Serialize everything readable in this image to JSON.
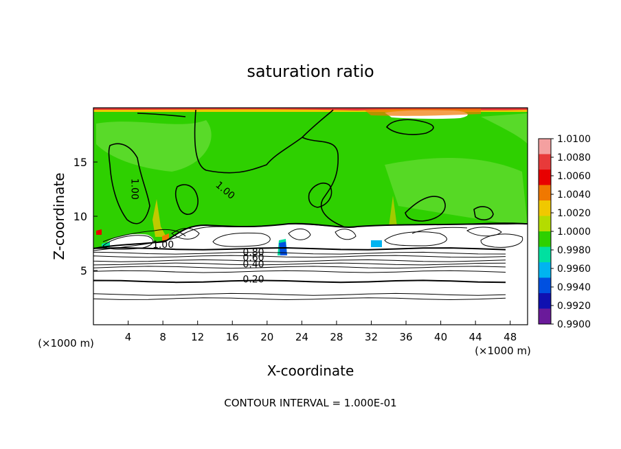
{
  "chart_data": {
    "type": "heatmap",
    "title": "saturation ratio",
    "xlabel": "X-coordinate",
    "ylabel": "Z-coordinate",
    "x_units_left": "(×1000 m)",
    "x_units_right": "(×1000 m)",
    "xlim": [
      0,
      50
    ],
    "ylim": [
      0,
      20
    ],
    "xticks": [
      4,
      8,
      12,
      16,
      20,
      24,
      28,
      32,
      36,
      40,
      44,
      48
    ],
    "yticks": [
      5,
      10,
      15
    ],
    "footer": "CONTOUR INTERVAL = 1.000E-01",
    "colorbar": {
      "ticks": [
        "1.0100",
        "1.0080",
        "1.0060",
        "1.0040",
        "1.0020",
        "1.0000",
        "0.9980",
        "0.9960",
        "0.9940",
        "0.9920",
        "0.9900"
      ],
      "colors": [
        "#f4a0a0",
        "#e83a3a",
        "#e80000",
        "#f07800",
        "#f0c800",
        "#b4dc00",
        "#2ed000",
        "#00e0a0",
        "#00b4f0",
        "#0050e0",
        "#1010b0",
        "#6a1a9a"
      ]
    },
    "background_color": "#2ed000",
    "contours": [
      {
        "label": "1.00",
        "value": 1.0,
        "x": 4.4,
        "z": 13.5
      },
      {
        "label": "1.00",
        "value": 1.0,
        "x": 14.0,
        "z": 12.8
      },
      {
        "label": "1.00",
        "value": 1.0,
        "x": 6.8,
        "z": 7.1
      },
      {
        "label": "0.80",
        "value": 0.8,
        "x": 17.2,
        "z": 6.4
      },
      {
        "label": "0.60",
        "value": 0.6,
        "x": 17.2,
        "z": 5.9
      },
      {
        "label": "0.40",
        "value": 0.4,
        "x": 17.2,
        "z": 5.3
      },
      {
        "label": "0.20",
        "value": 0.2,
        "x": 17.2,
        "z": 3.9
      }
    ],
    "horizontal_contours_z": [
      7.0,
      6.6,
      6.3,
      5.9,
      5.6,
      5.3,
      4.9,
      4.0,
      2.8,
      2.4
    ]
  }
}
